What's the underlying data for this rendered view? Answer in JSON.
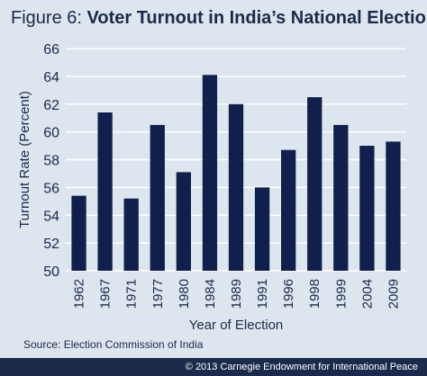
{
  "header": {
    "figure_label": "Figure 6:",
    "title": "Voter Turnout in India’s National Elections"
  },
  "chart_data": {
    "type": "bar",
    "title": "Voter Turnout in India’s National Elections",
    "xlabel": "Year of Election",
    "ylabel": "Turnout Rate (Percent)",
    "ylim": [
      50,
      66
    ],
    "yticks": [
      50,
      52,
      54,
      56,
      58,
      60,
      62,
      64,
      66
    ],
    "grid": true,
    "categories": [
      "1962",
      "1967",
      "1971",
      "1977",
      "1980",
      "1984",
      "1989",
      "1991",
      "1996",
      "1998",
      "1999",
      "2004",
      "2009"
    ],
    "values": [
      55.4,
      61.4,
      55.2,
      60.5,
      57.1,
      64.1,
      62.0,
      56.0,
      58.7,
      62.5,
      60.5,
      59.0,
      59.3
    ],
    "colors": {
      "bar": "#101f4b",
      "grid": "#ffffff",
      "background": "#dde5ef"
    }
  },
  "source": "Source: Election Commission of India",
  "footer": "© 2013 Carnegie Endowment for International Peace"
}
